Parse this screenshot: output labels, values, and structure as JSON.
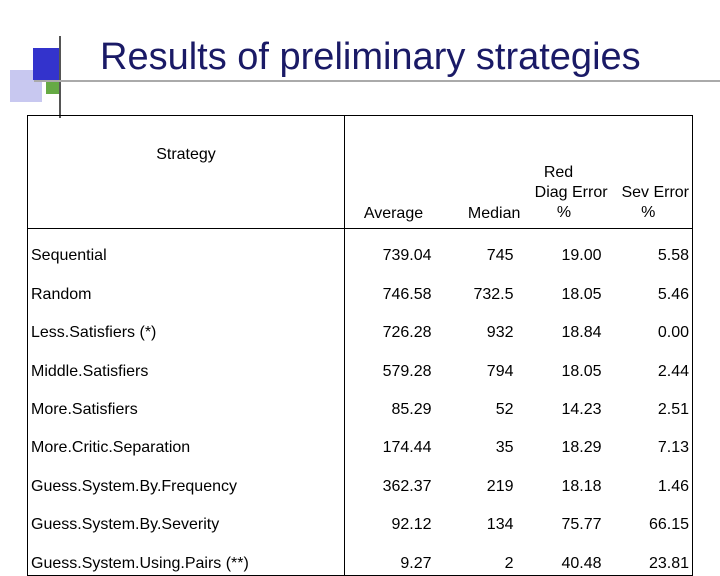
{
  "title": "Results of preliminary strategies",
  "table": {
    "header": {
      "strategy": "Strategy",
      "group": "Red",
      "columns": [
        "Average",
        "Median",
        "Diag Error",
        "Sev Error"
      ],
      "units": [
        "",
        "",
        "%",
        "%"
      ]
    },
    "rows": [
      {
        "strategy": "Sequential",
        "average": "739.04",
        "median": "745",
        "diag_error": "19.00",
        "sev_error": "5.58"
      },
      {
        "strategy": "Random",
        "average": "746.58",
        "median": "732.5",
        "diag_error": "18.05",
        "sev_error": "5.46"
      },
      {
        "strategy": "Less.Satisfiers (*)",
        "average": "726.28",
        "median": "932",
        "diag_error": "18.84",
        "sev_error": "0.00"
      },
      {
        "strategy": "Middle.Satisfiers",
        "average": "579.28",
        "median": "794",
        "diag_error": "18.05",
        "sev_error": "2.44"
      },
      {
        "strategy": "More.Satisfiers",
        "average": "85.29",
        "median": "52",
        "diag_error": "14.23",
        "sev_error": "2.51"
      },
      {
        "strategy": "More.Critic.Separation",
        "average": "174.44",
        "median": "35",
        "diag_error": "18.29",
        "sev_error": "7.13"
      },
      {
        "strategy": "Guess.System.By.Frequency",
        "average": "362.37",
        "median": "219",
        "diag_error": "18.18",
        "sev_error": "1.46"
      },
      {
        "strategy": "Guess.System.By.Severity",
        "average": "92.12",
        "median": "134",
        "diag_error": "75.77",
        "sev_error": "66.15"
      },
      {
        "strategy": "Guess.System.Using.Pairs (**)",
        "average": "9.27",
        "median": "2",
        "diag_error": "40.48",
        "sev_error": "23.81"
      }
    ]
  }
}
